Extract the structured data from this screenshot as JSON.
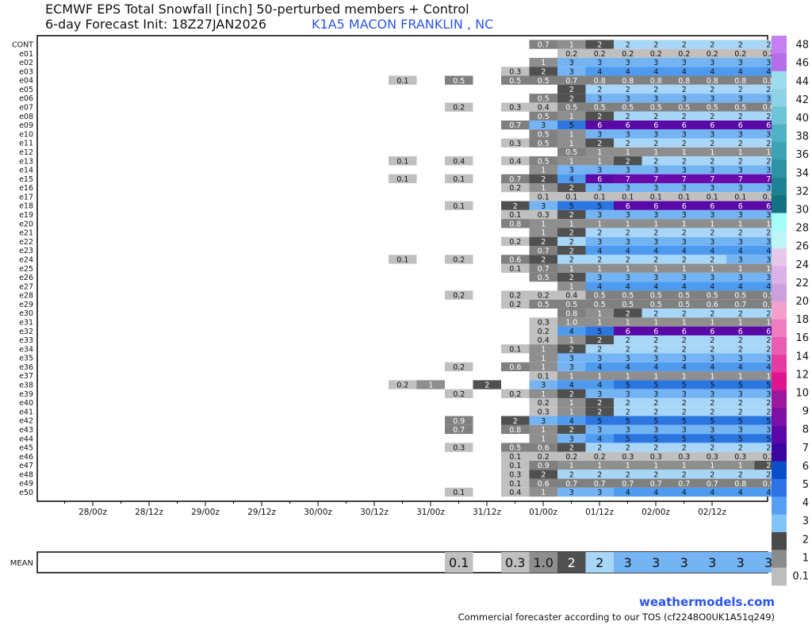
{
  "header": {
    "title": "ECMWF EPS Total Snowfall [inch]  50-perturbed members + Control",
    "subtitle": "6-day Forecast Init: 18Z27JAN2026",
    "station": "K1A5 MACON FRANKLIN , NC"
  },
  "footer": {
    "brand": "weathermodels.com",
    "notice": "Commercial forecaster according to our TOS (cf2248O0UK1A51q249)"
  },
  "chart_data": {
    "type": "heatmap",
    "members": [
      "CONT",
      "e01",
      "e02",
      "e03",
      "e04",
      "e05",
      "e06",
      "e07",
      "e08",
      "e09",
      "e10",
      "e11",
      "e12",
      "e13",
      "e14",
      "e15",
      "e16",
      "e17",
      "e18",
      "e19",
      "e20",
      "e21",
      "e22",
      "e23",
      "e24",
      "e25",
      "e26",
      "e27",
      "e28",
      "e29",
      "e30",
      "e31",
      "e32",
      "e33",
      "e34",
      "e35",
      "e36",
      "e37",
      "e38",
      "e39",
      "e40",
      "e41",
      "e42",
      "e43",
      "e44",
      "e45",
      "e46",
      "e47",
      "e48",
      "e49",
      "e50"
    ],
    "x_tick_labels": [
      "28/00z",
      "28/12z",
      "29/00z",
      "29/12z",
      "30/00z",
      "30/12z",
      "31/00z",
      "31/12z",
      "01/00z",
      "01/12z",
      "02/00z",
      "02/12z"
    ],
    "time_step_hours": 6,
    "first_time_label": "28/00z",
    "first_data_step_index": 12,
    "member_values": [
      [
        "",
        "",
        "",
        "",
        "",
        "0.7",
        "1",
        "2",
        "2",
        "2",
        "2",
        "2",
        "2",
        "2"
      ],
      [
        "",
        "",
        "",
        "",
        "",
        "",
        "0.2",
        "0.2",
        "0.2",
        "0.2",
        "0.2",
        "0.2",
        "0.2",
        "0.2"
      ],
      [
        "",
        "",
        "",
        "",
        "",
        "1",
        "3",
        "3",
        "3",
        "3",
        "3",
        "3",
        "3",
        "3"
      ],
      [
        "",
        "",
        "",
        "",
        "0.3",
        "2",
        "3",
        "4",
        "4",
        "4",
        "4",
        "4",
        "4",
        "4"
      ],
      [
        "0.1",
        "",
        "0.5",
        "",
        "0.5",
        "0.5",
        "0.7",
        "0.8",
        "0.8",
        "0.8",
        "0.8",
        "0.8",
        "0.8",
        "0.8"
      ],
      [
        "",
        "",
        "",
        "",
        "",
        "",
        "2",
        "2",
        "2",
        "2",
        "2",
        "2",
        "2",
        "2"
      ],
      [
        "",
        "",
        "",
        "",
        "",
        "0.5",
        "2",
        "3",
        "3",
        "3",
        "3",
        "3",
        "3",
        "3"
      ],
      [
        "",
        "",
        "0.2",
        "",
        "0.3",
        "0.4",
        "0.5",
        "0.5",
        "0.5",
        "0.5",
        "0.5",
        "0.5",
        "0.5",
        "0.6"
      ],
      [
        "",
        "",
        "",
        "",
        "",
        "0.5",
        "1",
        "2",
        "2",
        "2",
        "2",
        "2",
        "2",
        "2"
      ],
      [
        "",
        "",
        "",
        "",
        "0.7",
        "3",
        "5",
        "6",
        "6",
        "6",
        "6",
        "6",
        "6",
        "6"
      ],
      [
        "",
        "",
        "",
        "",
        "",
        "0.5",
        "1",
        "3",
        "3",
        "3",
        "3",
        "3",
        "3",
        "3"
      ],
      [
        "",
        "",
        "",
        "",
        "0.3",
        "0.5",
        "1",
        "2",
        "2",
        "2",
        "2",
        "2",
        "2",
        "2"
      ],
      [
        "",
        "",
        "",
        "",
        "",
        "",
        "0.5",
        "1",
        "1",
        "1",
        "1",
        "1",
        "1",
        "1"
      ],
      [
        "0.1",
        "",
        "0.4",
        "",
        "0.4",
        "0.5",
        "1",
        "1",
        "2",
        "2",
        "2",
        "2",
        "2",
        "2"
      ],
      [
        "",
        "",
        "",
        "",
        "",
        "1",
        "3",
        "3",
        "3",
        "3",
        "3",
        "3",
        "3",
        "3"
      ],
      [
        "0.1",
        "",
        "0.1",
        "",
        "0.7",
        "2",
        "4",
        "6",
        "7",
        "7",
        "7",
        "7",
        "7",
        "7"
      ],
      [
        "",
        "",
        "",
        "",
        "0.2",
        "1",
        "2",
        "3",
        "3",
        "3",
        "3",
        "3",
        "3",
        "3"
      ],
      [
        "",
        "",
        "",
        "",
        "",
        "0.1",
        "0.1",
        "0.1",
        "0.1",
        "0.1",
        "0.1",
        "0.1",
        "0.1",
        "0.1"
      ],
      [
        "",
        "",
        "0.1",
        "",
        "2",
        "3",
        "5",
        "5",
        "6",
        "6",
        "6",
        "6",
        "6",
        "6"
      ],
      [
        "",
        "",
        "",
        "",
        "0.1",
        "0.3",
        "2",
        "3",
        "3",
        "3",
        "3",
        "3",
        "3",
        "3"
      ],
      [
        "",
        "",
        "",
        "",
        "0.8",
        "1",
        "1",
        "1",
        "1",
        "1",
        "1",
        "1",
        "1",
        "1"
      ],
      [
        "",
        "",
        "",
        "",
        "",
        "1",
        "2",
        "2",
        "2",
        "2",
        "2",
        "2",
        "2",
        "2"
      ],
      [
        "",
        "",
        "",
        "",
        "0.2",
        "2",
        "2",
        "3",
        "3",
        "3",
        "3",
        "3",
        "3",
        "3"
      ],
      [
        "",
        "",
        "",
        "",
        "",
        "0.7",
        "2",
        "4",
        "4",
        "4",
        "4",
        "4",
        "4",
        "4"
      ],
      [
        "0.1",
        "",
        "0.2",
        "",
        "0.6",
        "2",
        "2",
        "2",
        "2",
        "2",
        "2",
        "2",
        "3",
        "3"
      ],
      [
        "",
        "",
        "",
        "",
        "0.1",
        "0.7",
        "1",
        "1",
        "1",
        "1",
        "1",
        "1",
        "1",
        "1"
      ],
      [
        "",
        "",
        "",
        "",
        "",
        "0.5",
        "2",
        "3",
        "3",
        "3",
        "3",
        "3",
        "3",
        "3"
      ],
      [
        "",
        "",
        "",
        "",
        "",
        "",
        "1",
        "4",
        "4",
        "4",
        "4",
        "4",
        "4",
        "4"
      ],
      [
        "",
        "",
        "0.2",
        "",
        "0.2",
        "0.2",
        "0.4",
        "0.5",
        "0.5",
        "0.5",
        "0.5",
        "0.5",
        "0.5",
        "0.5"
      ],
      [
        "",
        "",
        "",
        "",
        "0.2",
        "0.5",
        "0.5",
        "0.5",
        "0.5",
        "0.5",
        "0.5",
        "0.6",
        "0.7",
        "0.7"
      ],
      [
        "",
        "",
        "",
        "",
        "",
        "",
        "0.8",
        "1",
        "2",
        "2",
        "2",
        "2",
        "2",
        "2"
      ],
      [
        "",
        "",
        "",
        "",
        "",
        "0.3",
        "1.0",
        "1",
        "1",
        "1",
        "1",
        "1",
        "1",
        "1"
      ],
      [
        "",
        "",
        "",
        "",
        "",
        "0.2",
        "4",
        "5",
        "6",
        "6",
        "6",
        "6",
        "6",
        "6"
      ],
      [
        "",
        "",
        "",
        "",
        "",
        "0.4",
        "1",
        "2",
        "2",
        "2",
        "2",
        "2",
        "2",
        "2"
      ],
      [
        "",
        "",
        "",
        "",
        "0.1",
        "1",
        "2",
        "2",
        "2",
        "2",
        "2",
        "2",
        "2",
        "2"
      ],
      [
        "",
        "",
        "",
        "",
        "",
        "1",
        "3",
        "3",
        "3",
        "3",
        "3",
        "3",
        "3",
        "3"
      ],
      [
        "",
        "",
        "0.2",
        "",
        "0.6",
        "1",
        "3",
        "4",
        "4",
        "4",
        "4",
        "4",
        "4",
        "4"
      ],
      [
        "",
        "",
        "",
        "",
        "",
        "0.1",
        "1",
        "1",
        "1",
        "1",
        "1",
        "1",
        "1",
        "1"
      ],
      [
        "0.2",
        "1",
        "",
        "2",
        "",
        "3",
        "4",
        "4",
        "5",
        "5",
        "5",
        "5",
        "5",
        "5"
      ],
      [
        "",
        "",
        "0.2",
        "",
        "0.2",
        "1",
        "2",
        "3",
        "3",
        "3",
        "3",
        "3",
        "3",
        "3"
      ],
      [
        "",
        "",
        "",
        "",
        "",
        "0.2",
        "1",
        "2",
        "2",
        "2",
        "2",
        "2",
        "2",
        "2"
      ],
      [
        "",
        "",
        "",
        "",
        "",
        "0.3",
        "1",
        "2",
        "2",
        "2",
        "2",
        "2",
        "2",
        "2"
      ],
      [
        "",
        "",
        "0.9",
        "",
        "2",
        "3",
        "4",
        "5",
        "5",
        "5",
        "5",
        "5",
        "5",
        "5"
      ],
      [
        "",
        "",
        "0.7",
        "",
        "0.8",
        "1",
        "2",
        "3",
        "3",
        "3",
        "3",
        "3",
        "3",
        "3"
      ],
      [
        "",
        "",
        "",
        "",
        "",
        "1",
        "3",
        "4",
        "5",
        "5",
        "5",
        "5",
        "5",
        "5"
      ],
      [
        "",
        "",
        "0.3",
        "",
        "0.5",
        "0.6",
        "2",
        "2",
        "2",
        "2",
        "2",
        "2",
        "2",
        "2"
      ],
      [
        "",
        "",
        "",
        "",
        "0.1",
        "0.2",
        "0.2",
        "0.2",
        "0.3",
        "0.3",
        "0.3",
        "0.3",
        "0.3",
        "0.3"
      ],
      [
        "",
        "",
        "",
        "",
        "0.1",
        "0.9",
        "1",
        "1",
        "1",
        "1",
        "1",
        "1",
        "1",
        "2"
      ],
      [
        "",
        "",
        "",
        "",
        "0.3",
        "2",
        "2",
        "2",
        "2",
        "2",
        "2",
        "2",
        "2",
        "2"
      ],
      [
        "",
        "",
        "",
        "",
        "0.1",
        "0.6",
        "0.7",
        "0.7",
        "0.7",
        "0.7",
        "0.7",
        "0.7",
        "0.8",
        "0.9"
      ],
      [
        "",
        "",
        "0.1",
        "",
        "0.4",
        "1",
        "3",
        "3",
        "4",
        "4",
        "4",
        "4",
        "4",
        "4"
      ]
    ],
    "mean_label": "MEAN",
    "mean_values": [
      "",
      "",
      "0.1",
      "",
      "0.3",
      "1.0",
      "2",
      "2",
      "3",
      "3",
      "3",
      "3",
      "3",
      "3"
    ],
    "colorbar": {
      "labels": [
        "48",
        "46",
        "44",
        "42",
        "40",
        "38",
        "36",
        "34",
        "32",
        "30",
        "28",
        "26",
        "24",
        "22",
        "20",
        "18",
        "16",
        "14",
        "12",
        "10",
        "9",
        "8",
        "7",
        "6",
        "5",
        "4",
        "3",
        "2",
        "1",
        "0.1"
      ],
      "colors": [
        "#c77ef0",
        "#b56ee8",
        "#9cdcec",
        "#8fd2e6",
        "#6fc4d8",
        "#4fb2c2",
        "#3da2b2",
        "#2e92a2",
        "#1f8292",
        "#137282",
        "#a5fcf8",
        "#bff5f5",
        "#e8c8ea",
        "#dab2e6",
        "#cba0dc",
        "#f4a0cc",
        "#ee7ec0",
        "#ea5cb2",
        "#e63aa0",
        "#de158e",
        "#9e189c",
        "#8010a4",
        "#5c08a8",
        "#3a06a0",
        "#0c4ec8",
        "#2e72e8",
        "#559ef4",
        "#82c4f8",
        "#4a4a4a",
        "#8c8c8c",
        "#bdbdbd"
      ]
    }
  }
}
